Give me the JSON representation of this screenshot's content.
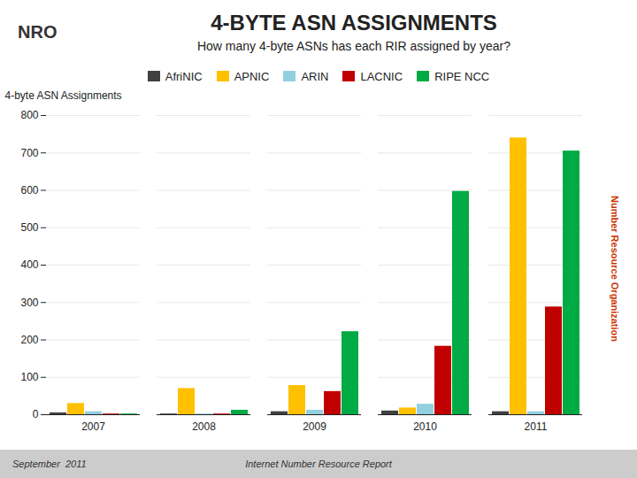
{
  "chart_data": {
    "type": "bar",
    "title": "4-BYTE ASN ASSIGNMENTS",
    "subtitle": "How many 4-byte ASNs has each RIR assigned by year?",
    "ylabel": "4-byte ASN Assignments",
    "categories": [
      "2007",
      "2008",
      "2009",
      "2010",
      "2011"
    ],
    "series": [
      {
        "name": "AfriNIC",
        "color": "#404040",
        "values": [
          5,
          2,
          8,
          10,
          8
        ]
      },
      {
        "name": "APNIC",
        "color": "#FFC000",
        "values": [
          30,
          70,
          78,
          18,
          740
        ]
      },
      {
        "name": "ARIN",
        "color": "#92D0E0",
        "values": [
          8,
          2,
          12,
          28,
          8
        ]
      },
      {
        "name": "LACNIC",
        "color": "#C00000",
        "values": [
          2,
          2,
          62,
          183,
          288
        ]
      },
      {
        "name": "RIPE NCC",
        "color": "#00AA44",
        "values": [
          2,
          12,
          222,
          597,
          705
        ]
      }
    ],
    "ylim": [
      0,
      800
    ],
    "yticks": [
      0,
      100,
      200,
      300,
      400,
      500,
      600,
      700,
      800
    ],
    "grid": true,
    "legend": "top",
    "annotations": [
      "NRO",
      "September  2011",
      "Internet Number Resource Report",
      "Number Resource Organization"
    ]
  }
}
